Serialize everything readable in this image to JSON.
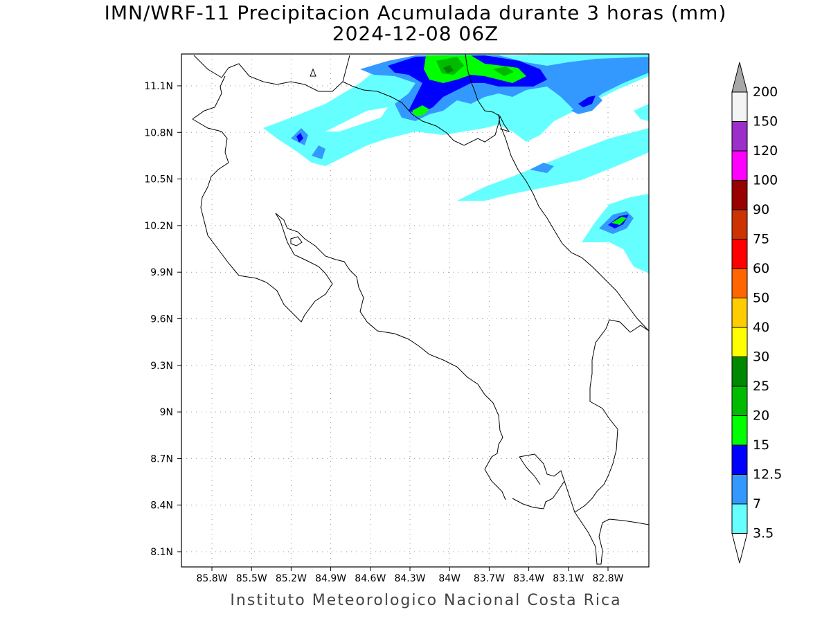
{
  "title_line1": "IMN/WRF-11 Precipitacion Acumulada durante 3 horas (mm)",
  "title_line2": "2024-12-08 06Z",
  "footer": "Instituto Meteorologico Nacional Costa Rica",
  "lat_labels": [
    "11.1N",
    "10.8N",
    "10.5N",
    "10.2N",
    "9.9N",
    "9.6N",
    "9.3N",
    "9N",
    "8.7N",
    "8.4N",
    "8.1N"
  ],
  "lon_labels": [
    "85.8W",
    "85.5W",
    "85.2W",
    "84.9W",
    "84.6W",
    "84.3W",
    "84W",
    "83.7W",
    "83.4W",
    "83.1W",
    "82.8W"
  ],
  "colorbar": [
    {
      "label": "200",
      "color": "#a8a8a8"
    },
    {
      "label": "150",
      "color": "#f4f4f4"
    },
    {
      "label": "120",
      "color": "#9b2fc9"
    },
    {
      "label": "100",
      "color": "#ff00ff"
    },
    {
      "label": "90",
      "color": "#990000"
    },
    {
      "label": "75",
      "color": "#cc3300"
    },
    {
      "label": "60",
      "color": "#ff0000"
    },
    {
      "label": "50",
      "color": "#ff6600"
    },
    {
      "label": "40",
      "color": "#ffcc00"
    },
    {
      "label": "30",
      "color": "#ffff00"
    },
    {
      "label": "25",
      "color": "#008800"
    },
    {
      "label": "20",
      "color": "#00bb00"
    },
    {
      "label": "15",
      "color": "#00ff00"
    },
    {
      "label": "12.5",
      "color": "#0000ff"
    },
    {
      "label": "7",
      "color": "#3399ff"
    },
    {
      "label": "3.5",
      "color": "#66ffff"
    },
    {
      "label": "",
      "color": "#ffffff"
    }
  ]
}
